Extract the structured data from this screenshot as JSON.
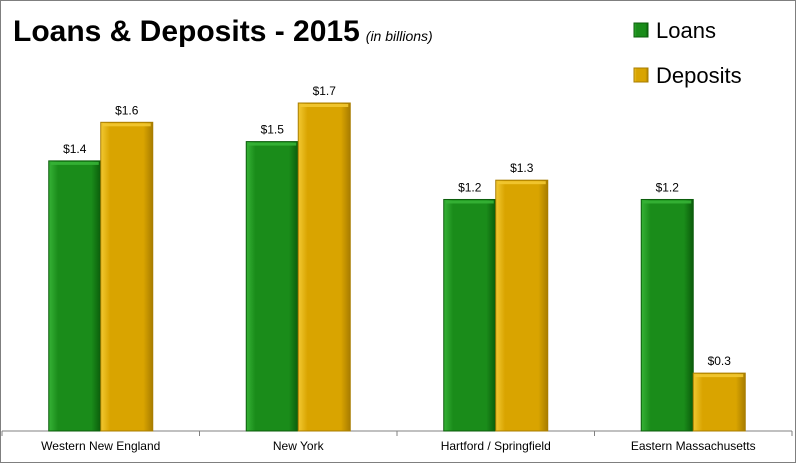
{
  "title": "Loans & Deposits - 2015",
  "subtitle": "(in billions)",
  "colors": {
    "loans": "#1a8c1a",
    "loans_dark": "#0b5c0b",
    "loans_light": "#36b236",
    "deposits": "#d9a400",
    "deposits_dark": "#a87d00",
    "deposits_light": "#f2c832"
  },
  "chart_data": {
    "type": "bar",
    "categories": [
      "Western New England",
      "New York",
      "Hartford / Springfield",
      "Eastern Massachusetts"
    ],
    "series": [
      {
        "name": "Loans",
        "values": [
          1.4,
          1.5,
          1.2,
          1.2
        ],
        "labels": [
          "$1.4",
          "$1.5",
          "$1.2",
          "$1.2"
        ]
      },
      {
        "name": "Deposits",
        "values": [
          1.6,
          1.7,
          1.3,
          0.3
        ],
        "labels": [
          "$1.6",
          "$1.7",
          "$1.3",
          "$0.3"
        ]
      }
    ],
    "title": "Loans & Deposits - 2015",
    "subtitle": "(in billions)",
    "xlabel": "",
    "ylabel": "",
    "ylim": [
      0,
      1.84
    ],
    "grid": false,
    "legend": "top-right"
  }
}
